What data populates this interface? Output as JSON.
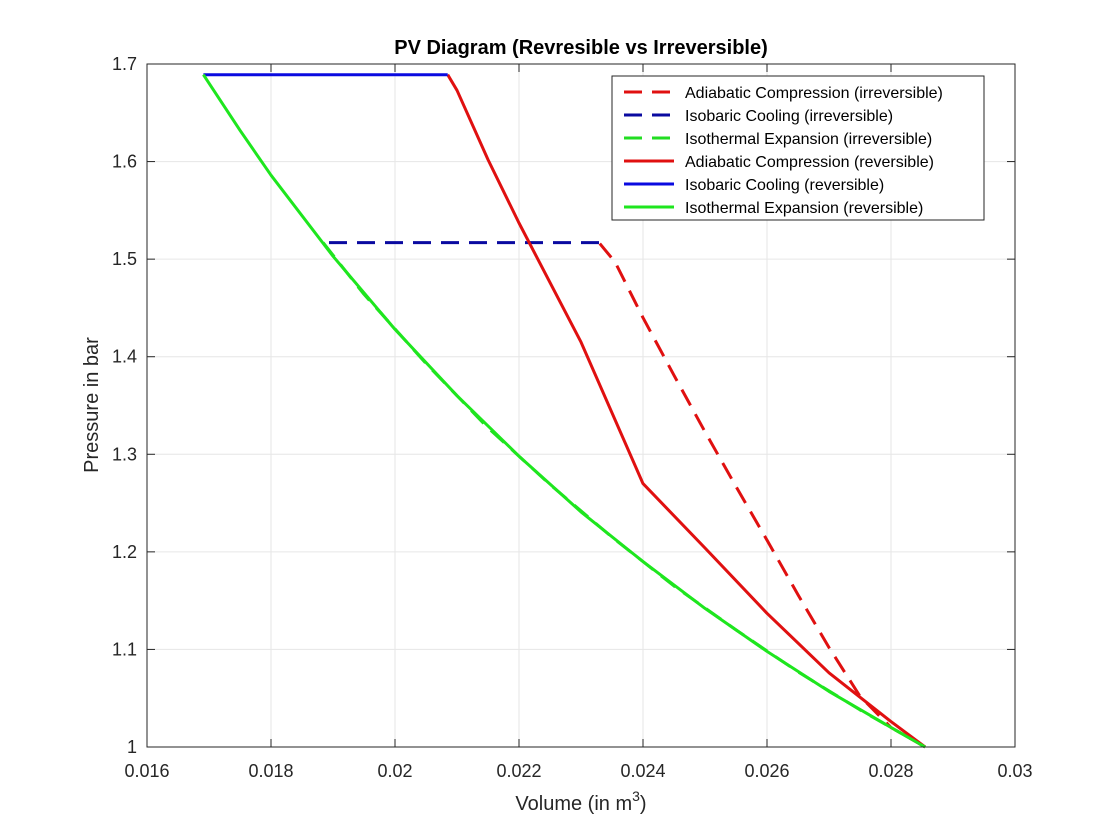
{
  "chart_data": {
    "type": "line",
    "title": "PV Diagram (Revresible vs Irreversible)",
    "xlabel": "Volume (in m",
    "xlabel_sup": "3",
    "xlabel_end": ")",
    "ylabel": "Pressure in bar",
    "xlim": [
      0.016,
      0.03
    ],
    "ylim": [
      1,
      1.7
    ],
    "xticks": [
      0.016,
      0.018,
      0.02,
      0.022,
      0.024,
      0.026,
      0.028,
      0.03
    ],
    "xtick_labels": [
      "0.016",
      "0.018",
      "0.02",
      "0.022",
      "0.024",
      "0.026",
      "0.028",
      "0.03"
    ],
    "yticks": [
      1,
      1.1,
      1.2,
      1.3,
      1.4,
      1.5,
      1.6,
      1.7
    ],
    "ytick_labels": [
      "1",
      "1.1",
      "1.2",
      "1.3",
      "1.4",
      "1.5",
      "1.6",
      "1.7"
    ],
    "grid": true,
    "legend_position": "top-right",
    "series": [
      {
        "name": "Adiabatic Compression (irreversible)",
        "color": "#e01010",
        "style": "dashed",
        "x": [
          0.02855,
          0.028,
          0.0275,
          0.027,
          0.0265,
          0.026,
          0.0255,
          0.025,
          0.0245,
          0.024,
          0.02355,
          0.02329
        ],
        "y": [
          1.0,
          1.02,
          1.052,
          1.102,
          1.156,
          1.212,
          1.267,
          1.323,
          1.381,
          1.44,
          1.497,
          1.517
        ]
      },
      {
        "name": "Isobaric Cooling (irreversible)",
        "color": "#0a0aa0",
        "style": "dashed",
        "x": [
          0.02329,
          0.01884
        ],
        "y": [
          1.517,
          1.517
        ]
      },
      {
        "name": "Isothermal Expansion (irreversible)",
        "color": "#22dd22",
        "style": "dashed",
        "x": [
          0.01884,
          0.0195,
          0.0205,
          0.0215,
          0.0225,
          0.0235,
          0.0245,
          0.0255,
          0.0265,
          0.0275,
          0.02855
        ],
        "y": [
          1.517,
          1.464,
          1.393,
          1.327,
          1.269,
          1.215,
          1.165,
          1.12,
          1.077,
          1.038,
          1.0
        ]
      },
      {
        "name": "Adiabatic Compression (reversible)",
        "color": "#e01010",
        "style": "solid",
        "x": [
          0.02855,
          0.028,
          0.027,
          0.026,
          0.025,
          0.024,
          0.023,
          0.022,
          0.0215,
          0.021,
          0.02085
        ],
        "y": [
          1.0,
          1.026,
          1.076,
          1.137,
          1.204,
          1.27,
          1.415,
          1.537,
          1.602,
          1.673,
          1.689
        ]
      },
      {
        "name": "Isobaric Cooling (reversible)",
        "color": "#0a0ae0",
        "style": "solid",
        "x": [
          0.02085,
          0.01691
        ],
        "y": [
          1.689,
          1.689
        ]
      },
      {
        "name": "Isothermal Expansion (reversible)",
        "color": "#1ee61e",
        "style": "solid",
        "x": [
          0.01691,
          0.0175,
          0.018,
          0.019,
          0.02,
          0.021,
          0.022,
          0.023,
          0.024,
          0.025,
          0.026,
          0.027,
          0.028,
          0.02855
        ],
        "y": [
          1.689,
          1.632,
          1.586,
          1.503,
          1.428,
          1.36,
          1.298,
          1.241,
          1.19,
          1.142,
          1.098,
          1.057,
          1.02,
          1.0
        ]
      }
    ]
  }
}
